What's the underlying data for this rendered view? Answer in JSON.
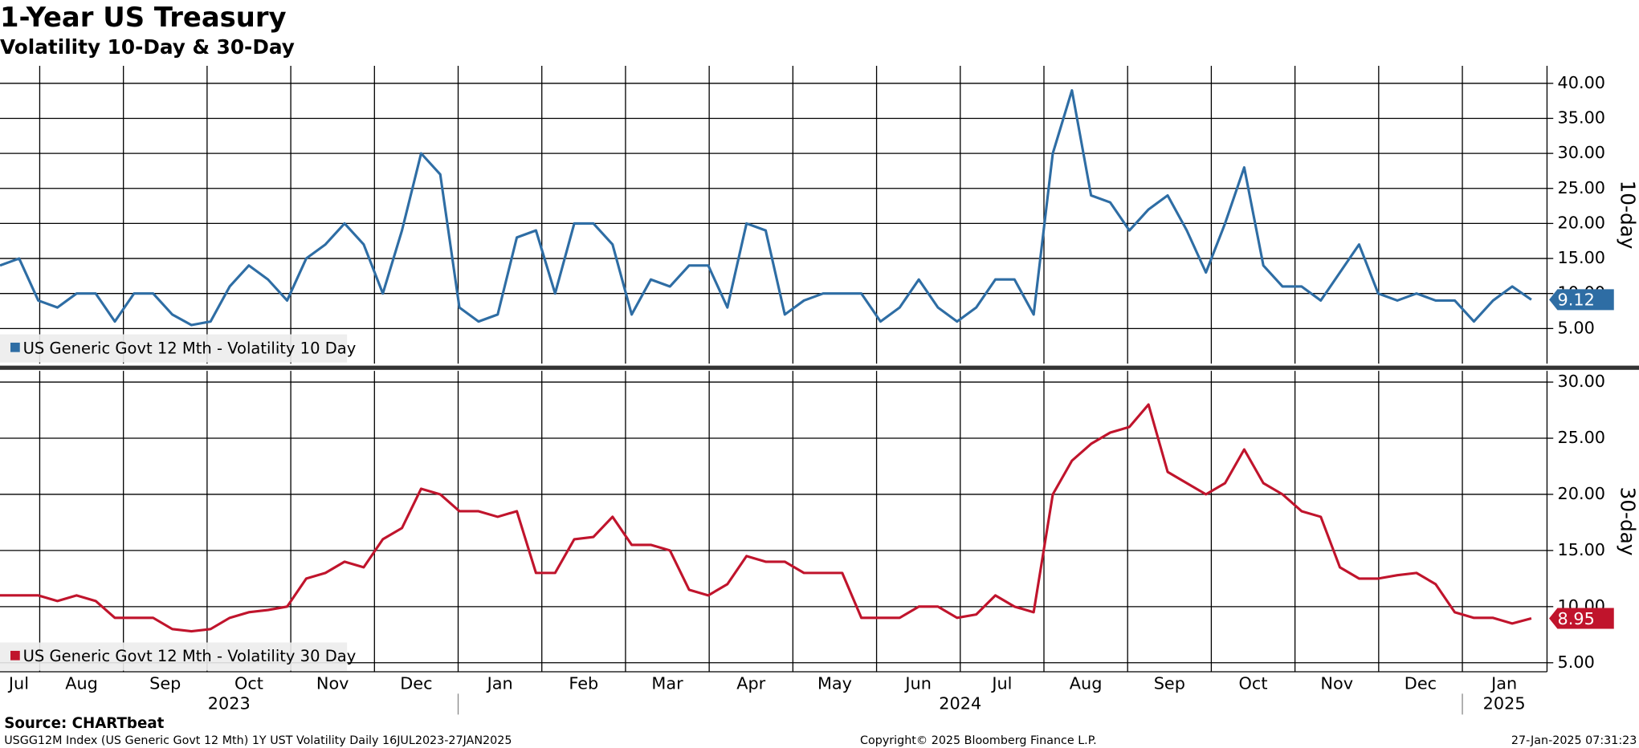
{
  "title": "1-Year US Treasury",
  "subtitle": "Volatility 10-Day & 30-Day",
  "chart_data": [
    {
      "type": "line",
      "axis_label": "10-day",
      "ylim": [
        0,
        42.5
      ],
      "grid": true,
      "yticks": [
        {
          "value": 5,
          "label": "5.00"
        },
        {
          "value": 10,
          "label": "10.00"
        },
        {
          "value": 15,
          "label": "15.00"
        },
        {
          "value": 20,
          "label": "20.00"
        },
        {
          "value": 25,
          "label": "25.00"
        },
        {
          "value": 30,
          "label": "30.00"
        },
        {
          "value": 35,
          "label": "35.00"
        },
        {
          "value": 40,
          "label": "40.00"
        }
      ],
      "series": [
        {
          "name": "US Generic Govt 12 Mth - Volatility 10 Day",
          "color": "#2e6da4",
          "values": [
            14,
            15,
            9,
            8,
            10,
            10,
            6,
            10,
            10,
            7,
            5.5,
            6,
            11,
            14,
            12,
            9,
            15,
            17,
            20,
            17,
            10,
            19,
            30,
            27,
            8,
            6,
            7,
            18,
            19,
            10,
            20,
            20,
            17,
            7,
            12,
            11,
            14,
            14,
            8,
            20,
            19,
            7,
            9,
            10,
            10,
            10,
            6,
            8,
            12,
            8,
            6,
            8,
            12,
            12,
            7,
            30,
            39,
            24,
            23,
            19,
            22,
            24,
            19,
            13,
            20,
            28,
            14,
            11,
            11,
            9,
            13,
            17,
            10,
            9,
            10,
            9,
            9,
            6,
            9,
            11,
            9.12
          ]
        }
      ]
    },
    {
      "type": "line",
      "axis_label": "30-day",
      "ylim": [
        4.2,
        31
      ],
      "grid": true,
      "yticks": [
        {
          "value": 5,
          "label": "5.00"
        },
        {
          "value": 10,
          "label": "10.00"
        },
        {
          "value": 15,
          "label": "15.00"
        },
        {
          "value": 20,
          "label": "20.00"
        },
        {
          "value": 25,
          "label": "25.00"
        },
        {
          "value": 30,
          "label": "30.00"
        }
      ],
      "series": [
        {
          "name": "US Generic Govt 12 Mth - Volatility 30 Day",
          "color": "#c0142c",
          "values": [
            11,
            11,
            11,
            10.5,
            11,
            10.5,
            9,
            9,
            9,
            8,
            7.8,
            8,
            9,
            9.5,
            9.7,
            10,
            12.5,
            13,
            14,
            13.5,
            16,
            17,
            20.5,
            20,
            18.5,
            18.5,
            18,
            18.5,
            13,
            13,
            16,
            16.2,
            18,
            15.5,
            15.5,
            15,
            11.5,
            11,
            12,
            14.5,
            14,
            14,
            13,
            13,
            13,
            9,
            9,
            9,
            10,
            10,
            9,
            9.3,
            11,
            10,
            9.5,
            20,
            23,
            24.5,
            25.5,
            26,
            28,
            22,
            21,
            20,
            21,
            24,
            21,
            20,
            18.5,
            18,
            13.5,
            12.5,
            12.5,
            12.8,
            13,
            12,
            9.5,
            9,
            9,
            8.5,
            8.95
          ]
        }
      ]
    }
  ],
  "x_axis": {
    "years": [
      {
        "label": "2023",
        "months": [
          "Jul",
          "Aug",
          "Sep",
          "Oct",
          "Nov",
          "Dec"
        ]
      },
      {
        "label": "2024",
        "months": [
          "Jan",
          "Feb",
          "Mar",
          "Apr",
          "May",
          "Jun",
          "Jul",
          "Aug",
          "Sep",
          "Oct",
          "Nov",
          "Dec"
        ]
      },
      {
        "label": "2025",
        "months": [
          "Jan"
        ]
      }
    ]
  },
  "footer": {
    "source": "Source: CHARTbeat",
    "description": "USGG12M Index (US Generic Govt 12 Mth) 1Y UST Volatility  Daily 16JUL2023-27JAN2025",
    "copyright": "Copyright© 2025 Bloomberg Finance L.P.",
    "timestamp": "27-Jan-2025 07:31:23"
  }
}
